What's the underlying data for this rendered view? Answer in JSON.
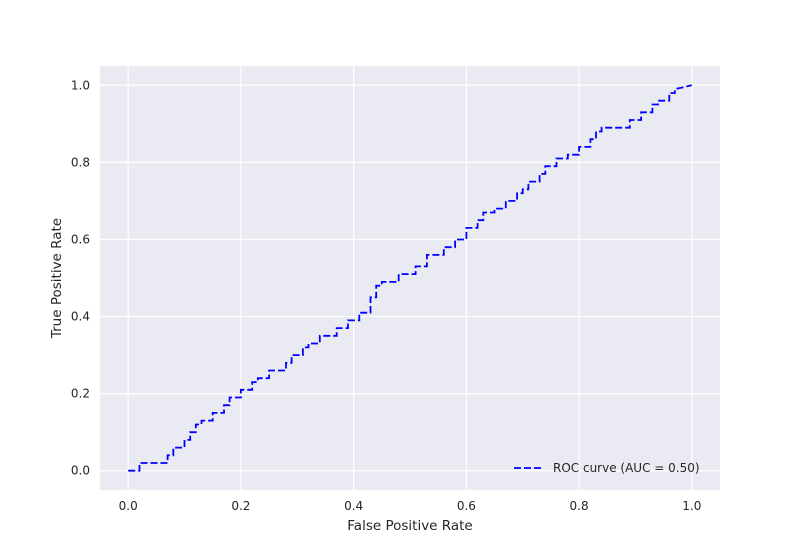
{
  "chart_data": {
    "type": "line",
    "title": "",
    "xlabel": "False Positive Rate",
    "ylabel": "True Positive Rate",
    "xlim": [
      -0.05,
      1.05
    ],
    "ylim": [
      -0.05,
      1.05
    ],
    "xticks": [
      0.0,
      0.2,
      0.4,
      0.6,
      0.8,
      1.0
    ],
    "yticks": [
      0.0,
      0.2,
      0.4,
      0.6,
      0.8,
      1.0
    ],
    "xtick_labels": [
      "0.0",
      "0.2",
      "0.4",
      "0.6",
      "0.8",
      "1.0"
    ],
    "ytick_labels": [
      "0.0",
      "0.2",
      "0.4",
      "0.6",
      "0.8",
      "1.0"
    ],
    "grid": true,
    "legend_position": "lower right",
    "colors": {
      "background": "#eaeaf2",
      "grid": "#ffffff",
      "line": "#0000ff"
    },
    "series": [
      {
        "name": "ROC curve (AUC = 0.50)",
        "style": "dashed",
        "x": [
          0.0,
          0.02,
          0.02,
          0.05,
          0.07,
          0.07,
          0.08,
          0.08,
          0.1,
          0.1,
          0.11,
          0.11,
          0.12,
          0.12,
          0.13,
          0.13,
          0.15,
          0.15,
          0.17,
          0.17,
          0.18,
          0.18,
          0.2,
          0.2,
          0.22,
          0.22,
          0.23,
          0.23,
          0.25,
          0.25,
          0.28,
          0.28,
          0.29,
          0.29,
          0.31,
          0.31,
          0.32,
          0.32,
          0.34,
          0.34,
          0.37,
          0.37,
          0.39,
          0.39,
          0.41,
          0.41,
          0.43,
          0.43,
          0.44,
          0.44,
          0.45,
          0.45,
          0.48,
          0.48,
          0.51,
          0.51,
          0.53,
          0.53,
          0.56,
          0.56,
          0.58,
          0.58,
          0.6,
          0.6,
          0.62,
          0.62,
          0.63,
          0.63,
          0.65,
          0.65,
          0.67,
          0.67,
          0.69,
          0.69,
          0.7,
          0.7,
          0.71,
          0.71,
          0.73,
          0.73,
          0.74,
          0.74,
          0.76,
          0.76,
          0.78,
          0.78,
          0.8,
          0.8,
          0.82,
          0.82,
          0.83,
          0.83,
          0.84,
          0.84,
          0.86,
          0.86,
          0.89,
          0.89,
          0.91,
          0.91,
          0.93,
          0.93,
          0.94,
          0.94,
          0.96,
          0.96,
          0.97,
          0.97,
          1.0
        ],
        "y": [
          0.0,
          0.0,
          0.02,
          0.02,
          0.02,
          0.04,
          0.04,
          0.06,
          0.06,
          0.08,
          0.08,
          0.1,
          0.1,
          0.12,
          0.12,
          0.13,
          0.13,
          0.15,
          0.15,
          0.17,
          0.17,
          0.19,
          0.19,
          0.21,
          0.21,
          0.23,
          0.23,
          0.24,
          0.24,
          0.26,
          0.26,
          0.28,
          0.28,
          0.3,
          0.3,
          0.32,
          0.32,
          0.33,
          0.33,
          0.35,
          0.35,
          0.37,
          0.37,
          0.39,
          0.39,
          0.41,
          0.41,
          0.45,
          0.45,
          0.48,
          0.48,
          0.49,
          0.49,
          0.51,
          0.51,
          0.53,
          0.53,
          0.56,
          0.56,
          0.58,
          0.58,
          0.6,
          0.6,
          0.63,
          0.63,
          0.65,
          0.65,
          0.67,
          0.67,
          0.68,
          0.68,
          0.7,
          0.7,
          0.72,
          0.72,
          0.73,
          0.73,
          0.75,
          0.75,
          0.77,
          0.77,
          0.79,
          0.79,
          0.81,
          0.81,
          0.82,
          0.82,
          0.84,
          0.84,
          0.86,
          0.86,
          0.88,
          0.88,
          0.89,
          0.89,
          0.89,
          0.89,
          0.91,
          0.91,
          0.93,
          0.93,
          0.95,
          0.95,
          0.96,
          0.96,
          0.98,
          0.98,
          0.99,
          1.0
        ]
      }
    ]
  }
}
